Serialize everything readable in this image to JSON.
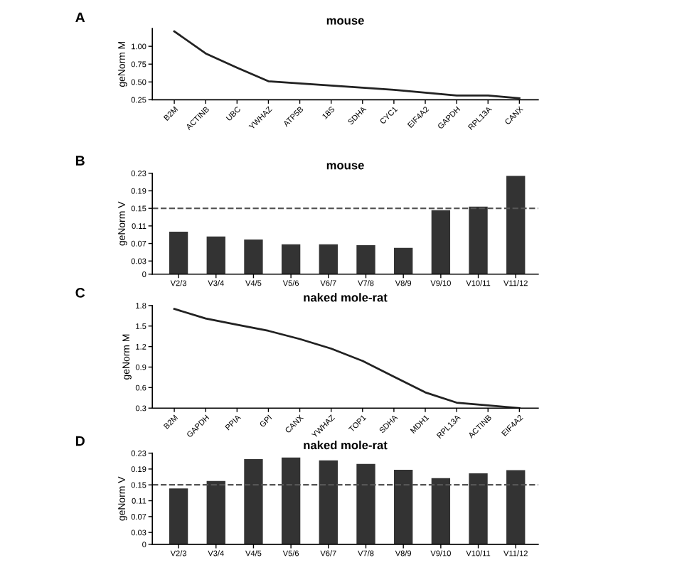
{
  "chart_data": [
    {
      "type": "line",
      "title": "mouse",
      "ylabel": "geNorm M",
      "annotations": [
        "A"
      ],
      "categories": [
        "B2M",
        "ACTINB",
        "UBC",
        "YWHAZ",
        "ATP5B",
        "18S",
        "SDHA",
        "CYC1",
        "EIF4A2",
        "GAPDH",
        "RPL13A",
        "CANX"
      ],
      "series": [
        {
          "color": "#222222",
          "values": [
            1.21,
            0.9,
            0.7,
            0.51,
            0.48,
            0.45,
            0.42,
            0.39,
            0.35,
            0.31,
            0.31,
            0.27
          ]
        }
      ],
      "ylim": [
        0.25,
        1.25
      ],
      "yticks": [
        {
          "value": 0.25,
          "label": "0.25"
        },
        {
          "value": 0.5,
          "label": "0.50"
        },
        {
          "value": 0.75,
          "label": "0.75"
        },
        {
          "value": 1.0,
          "label": "1.00"
        }
      ],
      "grid": false,
      "legend": false
    },
    {
      "type": "bar",
      "title": "mouse",
      "ylabel": "geNorm V",
      "annotations": [
        "B"
      ],
      "categories": [
        "V2/3",
        "V3/4",
        "V4/5",
        "V5/6",
        "V6/7",
        "V7/8",
        "V8/9",
        "V9/10",
        "V10/11",
        "V11/12"
      ],
      "series": [
        {
          "color": "#333333",
          "values": [
            0.097,
            0.086,
            0.079,
            0.068,
            0.068,
            0.066,
            0.06,
            0.146,
            0.154,
            0.224
          ]
        }
      ],
      "ylim": [
        0,
        0.23
      ],
      "yticks": [
        0,
        0.03,
        0.07,
        0.11,
        0.15,
        0.19,
        0.23
      ],
      "ref_lines": [
        {
          "axis": "y",
          "value": 0.15,
          "line_style": "dashed",
          "color": "#555555"
        }
      ],
      "grid": false,
      "legend": false
    },
    {
      "type": "line",
      "title": "naked mole-rat",
      "ylabel": "geNorm M",
      "annotations": [
        "C"
      ],
      "categories": [
        "B2M",
        "GAPDH",
        "PPIA",
        "GPI",
        "CANX",
        "YWHAZ",
        "TOP1",
        "SDHA",
        "MDH1",
        "RPL13A",
        "ACTINB",
        "EIF4A2"
      ],
      "series": [
        {
          "color": "#222222",
          "values": [
            1.75,
            1.61,
            1.52,
            1.43,
            1.31,
            1.17,
            0.99,
            0.76,
            0.53,
            0.38,
            0.34,
            0.3
          ]
        }
      ],
      "ylim": [
        0.3,
        1.8
      ],
      "yticks": [
        0.3,
        0.6,
        0.9,
        1.2,
        1.5,
        1.8
      ],
      "grid": false,
      "legend": false
    },
    {
      "type": "bar",
      "title": "naked mole-rat",
      "ylabel": "geNorm V",
      "annotations": [
        "D"
      ],
      "categories": [
        "V2/3",
        "V3/4",
        "V4/5",
        "V5/6",
        "V6/7",
        "V7/8",
        "V8/9",
        "V9/10",
        "V10/11",
        "V11/12"
      ],
      "series": [
        {
          "color": "#333333",
          "values": [
            0.141,
            0.16,
            0.215,
            0.219,
            0.212,
            0.203,
            0.188,
            0.167,
            0.179,
            0.187
          ]
        }
      ],
      "ylim": [
        0,
        0.23
      ],
      "yticks": [
        0,
        0.03,
        0.07,
        0.11,
        0.15,
        0.19,
        0.23
      ],
      "ref_lines": [
        {
          "axis": "y",
          "value": 0.15,
          "line_style": "dashed",
          "color": "#555555"
        }
      ],
      "grid": false,
      "legend": false
    }
  ]
}
